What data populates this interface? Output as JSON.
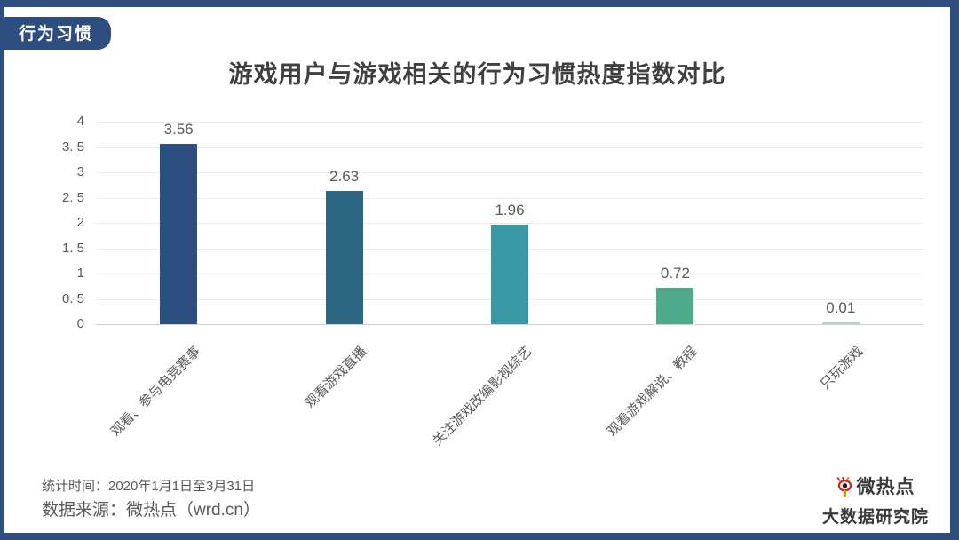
{
  "badge": {
    "label": "行为习惯"
  },
  "title": "游戏用户与游戏相关的行为习惯热度指数对比",
  "chart_data": {
    "type": "bar",
    "title": "游戏用户与游戏相关的行为习惯热度指数对比",
    "categories": [
      "观看、参与电竞赛事",
      "观看游戏直播",
      "关注游戏改编影视综艺",
      "观看游戏解说、教程",
      "只玩游戏"
    ],
    "values": [
      3.56,
      2.63,
      1.96,
      0.72,
      0.01
    ],
    "value_labels": [
      "3.56",
      "2.63",
      "1.96",
      "0.72",
      "0.01"
    ],
    "bar_colors": [
      "#2C4F82",
      "#2B6682",
      "#3999A6",
      "#4FA98C",
      "#ADD8BD"
    ],
    "xlabel": "",
    "ylabel": "",
    "ylim": [
      0,
      4
    ],
    "ytick_step": 0.5,
    "ytick_labels": [
      "0",
      "0. 5",
      "1",
      "1. 5",
      "2",
      "2. 5",
      "3",
      "3. 5",
      "4"
    ],
    "grid": true,
    "legend_position": "none"
  },
  "footer": {
    "stat_time": "统计时间：2020年1月1日至3月31日",
    "source": "数据来源：微热点（wrd.cn）"
  },
  "logo": {
    "icon": "eye-logo-icon",
    "name": "微热点",
    "subtitle": "大数据研究院",
    "accent_red": "#D6281E",
    "accent_orange": "#F08300"
  },
  "frame": {
    "color": "#2D4E7F"
  }
}
